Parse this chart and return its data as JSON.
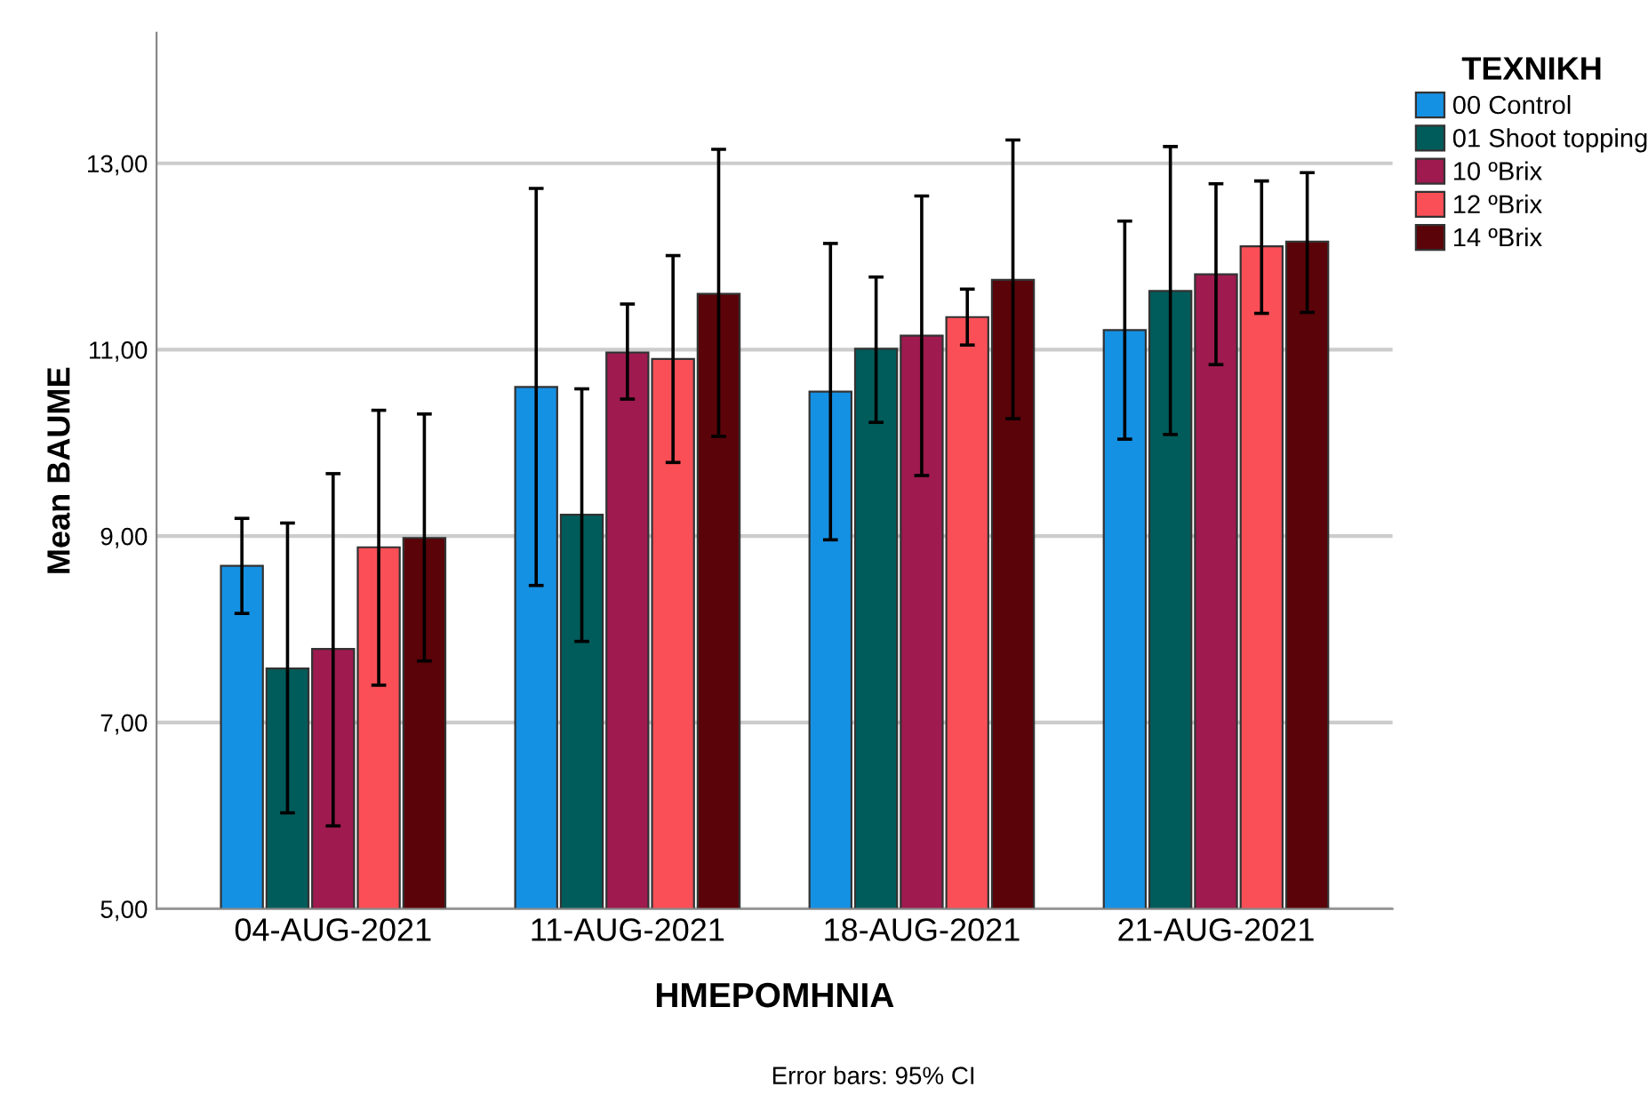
{
  "chart_data": {
    "type": "bar",
    "xlabel": "ΗΜΕΡΟΜΗΝΙΑ",
    "ylabel": "Mean BAUME",
    "legend_title": "ΤΕΧΝΙΚΗ",
    "legend": "top right",
    "grid": "y",
    "categories": [
      "04-AUG-2021",
      "11-AUG-2021",
      "18-AUG-2021",
      "21-AUG-2021"
    ],
    "ylim": [
      5,
      14.4
    ],
    "yticks": [
      {
        "value": 5,
        "label": "5,00"
      },
      {
        "value": 7,
        "label": "7,00"
      },
      {
        "value": 9,
        "label": "9,00"
      },
      {
        "value": 11,
        "label": "11,00"
      },
      {
        "value": 13,
        "label": "13,00"
      }
    ],
    "series": [
      {
        "name": "00 Control",
        "color": "#1591e4",
        "values": [
          8.68,
          10.6,
          10.55,
          11.21
        ],
        "errors": [
          [
            8.17,
            9.19
          ],
          [
            8.47,
            12.73
          ],
          [
            8.96,
            12.14
          ],
          [
            10.04,
            12.38
          ]
        ]
      },
      {
        "name": "01 Shoot topping",
        "color": "#005c5a",
        "values": [
          7.58,
          9.23,
          11.01,
          11.63
        ],
        "errors": [
          [
            6.03,
            9.14
          ],
          [
            7.87,
            10.58
          ],
          [
            10.22,
            11.78
          ],
          [
            10.09,
            13.18
          ]
        ]
      },
      {
        "name": "10 ºBrix",
        "color": "#9e1a4f",
        "values": [
          7.79,
          10.97,
          11.15,
          11.81
        ],
        "errors": [
          [
            5.89,
            9.67
          ],
          [
            10.47,
            11.49
          ],
          [
            9.65,
            12.65
          ],
          [
            10.84,
            12.78
          ]
        ]
      },
      {
        "name": "12 ºBrix",
        "color": "#fb4f57",
        "values": [
          8.88,
          10.9,
          11.35,
          12.11
        ],
        "errors": [
          [
            7.4,
            10.35
          ],
          [
            9.79,
            12.01
          ],
          [
            11.05,
            11.65
          ],
          [
            11.39,
            12.81
          ]
        ]
      },
      {
        "name": "14 ºBrix",
        "color": "#5a0309",
        "values": [
          8.98,
          11.6,
          11.75,
          12.16
        ],
        "errors": [
          [
            7.66,
            10.31
          ],
          [
            10.07,
            13.15
          ],
          [
            10.26,
            13.25
          ],
          [
            11.4,
            12.9
          ]
        ]
      }
    ],
    "annotations": [
      "Error bars: 95% CI"
    ]
  }
}
